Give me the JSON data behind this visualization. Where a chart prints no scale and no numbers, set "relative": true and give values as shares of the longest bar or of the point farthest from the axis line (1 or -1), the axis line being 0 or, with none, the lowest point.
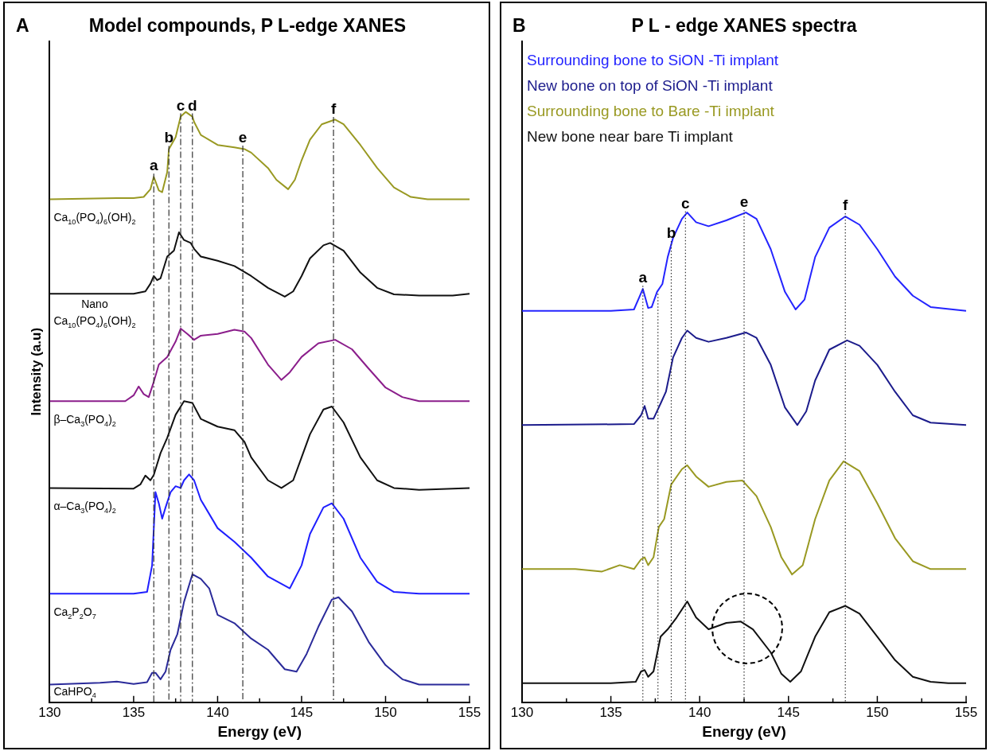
{
  "chart_data": [
    {
      "type": "line",
      "title": "Model compounds, P L-edge XANES",
      "xlabel": "Energy (eV)",
      "ylabel": "Intensity (a.u)",
      "relative": true,
      "marker": "none",
      "legend": false,
      "grid": false,
      "tick_labels": "x",
      "xlim": [
        130,
        155
      ],
      "xticks": [
        130,
        {
          "value": 132.5,
          "label": null
        },
        135,
        {
          "value": 137.5,
          "label": null
        },
        140,
        {
          "value": 142.5,
          "label": null
        },
        145,
        {
          "value": 147.5,
          "label": null
        },
        150,
        {
          "value": 152.5,
          "label": null
        },
        155
      ],
      "annotations": [
        "A"
      ],
      "ref_lines": [
        {
          "axis": "x",
          "value": 136.2,
          "label": "a",
          "line_style": "dashed"
        },
        {
          "axis": "x",
          "value": 137.1,
          "label": "b",
          "line_style": "dashed"
        },
        {
          "axis": "x",
          "value": 137.8,
          "label": "c",
          "line_style": "dashed"
        },
        {
          "axis": "x",
          "value": 138.5,
          "label": "d",
          "line_style": "dashed"
        },
        {
          "axis": "x",
          "value": 141.5,
          "label": "e",
          "line_style": "dashed"
        },
        {
          "axis": "x",
          "value": 146.9,
          "label": "f",
          "line_style": "dashed"
        }
      ],
      "series": [
        {
          "name": "Ca$_{10}$(PO$_{4}$)$_{6}$(OH)$_{2}$",
          "color": "#999922",
          "x": [
            130,
            134,
            135,
            135.6,
            136.0,
            136.2,
            136.5,
            136.7,
            137.0,
            137.1,
            137.5,
            137.8,
            138.1,
            138.5,
            138.6,
            139,
            140,
            141,
            141.6,
            142,
            143,
            143.5,
            144.2,
            144.6,
            145,
            145.5,
            146.2,
            147,
            147.5,
            148.5,
            149.5,
            150.5,
            151.5,
            152.5,
            155
          ],
          "values": [
            0.852,
            0.854,
            0.854,
            0.856,
            0.869,
            0.89,
            0.867,
            0.864,
            0.898,
            0.937,
            0.957,
            0.992,
            1.0,
            0.992,
            0.983,
            0.961,
            0.944,
            0.94,
            0.937,
            0.931,
            0.905,
            0.885,
            0.869,
            0.885,
            0.918,
            0.953,
            0.979,
            0.987,
            0.979,
            0.944,
            0.905,
            0.872,
            0.856,
            0.852,
            0.852
          ]
        },
        {
          "name": "Nano\nCa$_{10}$(PO$_{4}$)$_{6}$(OH)$_{2}$",
          "color": "#111111",
          "x": [
            130,
            135,
            135.7,
            136.0,
            136.2,
            136.4,
            136.6,
            137,
            137.4,
            137.7,
            138.0,
            138.4,
            138.6,
            139,
            140,
            141,
            142,
            143,
            144,
            144.5,
            145,
            145.5,
            146.3,
            146.7,
            147.5,
            148.5,
            149.5,
            150.5,
            152,
            154,
            155
          ],
          "values": [
            0.692,
            0.692,
            0.696,
            0.709,
            0.722,
            0.715,
            0.718,
            0.755,
            0.765,
            0.796,
            0.783,
            0.778,
            0.768,
            0.755,
            0.748,
            0.739,
            0.722,
            0.702,
            0.687,
            0.696,
            0.722,
            0.752,
            0.774,
            0.778,
            0.765,
            0.728,
            0.702,
            0.691,
            0.689,
            0.689,
            0.692
          ]
        },
        {
          "name": "β–Ca$_{3}$(PO$_{4}$)$_{2}$",
          "color": "#8b1e8b",
          "x": [
            130,
            134.5,
            135.0,
            135.3,
            135.6,
            135.9,
            136.2,
            136.5,
            137,
            137.5,
            137.8,
            138.2,
            138.6,
            139,
            140,
            141,
            141.6,
            142,
            143,
            143.8,
            144.3,
            145,
            146,
            147,
            148,
            149,
            150,
            151,
            152,
            155
          ],
          "values": [
            0.51,
            0.51,
            0.52,
            0.535,
            0.522,
            0.517,
            0.543,
            0.572,
            0.585,
            0.611,
            0.633,
            0.624,
            0.614,
            0.621,
            0.624,
            0.631,
            0.628,
            0.617,
            0.572,
            0.546,
            0.559,
            0.585,
            0.608,
            0.614,
            0.598,
            0.565,
            0.533,
            0.517,
            0.51,
            0.51
          ]
        },
        {
          "name": "α–Ca$_{3}$(PO$_{4}$)$_{2}$",
          "color": "#111111",
          "x": [
            130,
            135,
            135.4,
            135.7,
            136.0,
            136.2,
            136.6,
            137,
            137.5,
            138,
            138.5,
            139,
            140,
            141,
            141.6,
            142,
            143,
            143.8,
            144.5,
            145,
            145.5,
            146.3,
            146.8,
            147.5,
            148.5,
            149.5,
            150.5,
            152,
            155
          ],
          "values": [
            0.363,
            0.362,
            0.369,
            0.384,
            0.376,
            0.385,
            0.422,
            0.448,
            0.487,
            0.51,
            0.507,
            0.48,
            0.467,
            0.461,
            0.441,
            0.415,
            0.376,
            0.363,
            0.376,
            0.415,
            0.454,
            0.496,
            0.501,
            0.474,
            0.415,
            0.376,
            0.363,
            0.36,
            0.363
          ]
        },
        {
          "name": "Ca$_{2}$P$_{2}$O$_{7}$",
          "color": "#1f1fff",
          "x": [
            130,
            135,
            135.8,
            136.1,
            136.3,
            136.5,
            136.7,
            136.9,
            137.2,
            137.5,
            137.8,
            138,
            138.3,
            138.6,
            139,
            140,
            141,
            142,
            143,
            144.3,
            145,
            145.5,
            146.3,
            146.8,
            147.5,
            148.5,
            149.5,
            150.5,
            152,
            155
          ],
          "values": [
            0.184,
            0.184,
            0.187,
            0.232,
            0.356,
            0.337,
            0.311,
            0.33,
            0.356,
            0.366,
            0.363,
            0.376,
            0.386,
            0.376,
            0.343,
            0.295,
            0.272,
            0.245,
            0.213,
            0.193,
            0.232,
            0.285,
            0.33,
            0.337,
            0.311,
            0.245,
            0.204,
            0.187,
            0.184,
            0.184
          ]
        },
        {
          "name": "CaHPO$_{4}$",
          "color": "#2b2b9a",
          "x": [
            130,
            133,
            134,
            135,
            135.8,
            136.1,
            136.3,
            136.6,
            136.9,
            137.2,
            137.6,
            138,
            138.5,
            139,
            139.5,
            140,
            141,
            142,
            143,
            144,
            144.7,
            145.3,
            146,
            146.8,
            147.2,
            148,
            149,
            150,
            151,
            152,
            155
          ],
          "values": [
            0.03,
            0.033,
            0.035,
            0.031,
            0.034,
            0.05,
            0.05,
            0.039,
            0.052,
            0.089,
            0.115,
            0.17,
            0.217,
            0.209,
            0.193,
            0.148,
            0.134,
            0.108,
            0.089,
            0.056,
            0.052,
            0.082,
            0.128,
            0.174,
            0.178,
            0.154,
            0.102,
            0.063,
            0.039,
            0.03,
            0.03
          ]
        }
      ]
    },
    {
      "type": "line",
      "title": "P L - edge XANES spectra",
      "xlabel": "Energy (eV)",
      "relative": true,
      "marker": "none",
      "legend": "top left",
      "grid": false,
      "tick_labels": "x",
      "xlim": [
        130,
        155
      ],
      "xticks": [
        130,
        {
          "value": 132.5,
          "label": null
        },
        135,
        {
          "value": 137.5,
          "label": null
        },
        140,
        {
          "value": 142.5,
          "label": null
        },
        145,
        {
          "value": 147.5,
          "label": null
        },
        150,
        {
          "value": 152.5,
          "label": null
        },
        155
      ],
      "annotations": [
        "B"
      ],
      "ref_lines": [
        {
          "axis": "x",
          "value": 136.8,
          "label": "a",
          "line_style": "dotted"
        },
        {
          "axis": "x",
          "value": 137.65,
          "label": null,
          "line_style": "dotted"
        },
        {
          "axis": "x",
          "value": 138.4,
          "label": "b",
          "line_style": "dotted"
        },
        {
          "axis": "x",
          "value": 139.2,
          "label": "c",
          "line_style": "dotted"
        },
        {
          "axis": "x",
          "value": 142.5,
          "label": "e",
          "line_style": "dotted"
        },
        {
          "axis": "x",
          "value": 148.2,
          "label": "f",
          "line_style": "dotted"
        }
      ],
      "series": [
        {
          "name": "Surrounding bone to SiON -Ti implant",
          "color": "#2424ff",
          "x": [
            130,
            135,
            136.3,
            136.6,
            136.8,
            137.1,
            137.3,
            137.6,
            137.9,
            138.2,
            138.5,
            139.0,
            139.3,
            139.8,
            140.5,
            141.5,
            142.6,
            143.2,
            144,
            144.8,
            145.4,
            145.9,
            146.5,
            147.3,
            148.2,
            149,
            150,
            151,
            152,
            153,
            155
          ],
          "values": [
            0.799,
            0.799,
            0.802,
            0.827,
            0.844,
            0.805,
            0.807,
            0.838,
            0.854,
            0.909,
            0.948,
            0.987,
            1.0,
            0.98,
            0.972,
            0.984,
            1.0,
            0.987,
            0.925,
            0.838,
            0.802,
            0.822,
            0.909,
            0.969,
            0.992,
            0.975,
            0.925,
            0.869,
            0.83,
            0.807,
            0.799
          ]
        },
        {
          "name": "New bone on top of SiON -Ti implant",
          "color": "#1c1c8c",
          "x": [
            130,
            136.3,
            136.7,
            136.9,
            137.1,
            137.4,
            137.8,
            138.1,
            138.5,
            139,
            139.3,
            139.8,
            140.5,
            141.5,
            142.6,
            143.2,
            144,
            144.8,
            145.5,
            146,
            146.5,
            147.3,
            148.3,
            149,
            150,
            151,
            152,
            153,
            155
          ],
          "values": [
            0.566,
            0.568,
            0.586,
            0.605,
            0.579,
            0.579,
            0.61,
            0.634,
            0.704,
            0.744,
            0.759,
            0.744,
            0.736,
            0.744,
            0.755,
            0.744,
            0.689,
            0.602,
            0.566,
            0.594,
            0.657,
            0.72,
            0.739,
            0.728,
            0.689,
            0.634,
            0.586,
            0.571,
            0.566
          ]
        },
        {
          "name": "Surrounding bone to Bare -Ti implant",
          "color": "#999922",
          "x": [
            130,
            133,
            134.5,
            135.5,
            136.3,
            136.7,
            136.9,
            137.1,
            137.4,
            137.7,
            138,
            138.4,
            139,
            139.3,
            139.8,
            140.5,
            141.5,
            142.4,
            143.2,
            144,
            144.6,
            145.2,
            145.8,
            146.5,
            147.3,
            148.1,
            149,
            150,
            151,
            152,
            153,
            155
          ],
          "values": [
            0.272,
            0.272,
            0.267,
            0.28,
            0.272,
            0.292,
            0.296,
            0.28,
            0.296,
            0.358,
            0.374,
            0.445,
            0.476,
            0.484,
            0.461,
            0.44,
            0.45,
            0.453,
            0.421,
            0.358,
            0.296,
            0.261,
            0.28,
            0.374,
            0.453,
            0.492,
            0.472,
            0.406,
            0.335,
            0.288,
            0.272,
            0.272
          ]
        },
        {
          "name": "New bone near bare Ti implant",
          "color": "#111111",
          "x": [
            130,
            135,
            136.4,
            136.7,
            136.9,
            137.1,
            137.4,
            137.8,
            138.2,
            138.7,
            139.3,
            139.8,
            140.5,
            141.5,
            142.3,
            143,
            144,
            144.6,
            145.1,
            145.7,
            146.5,
            147.3,
            148.2,
            149,
            150,
            151,
            152,
            153,
            154,
            155
          ],
          "values": [
            0.039,
            0.039,
            0.042,
            0.063,
            0.066,
            0.052,
            0.063,
            0.134,
            0.149,
            0.173,
            0.206,
            0.173,
            0.149,
            0.162,
            0.165,
            0.149,
            0.102,
            0.058,
            0.042,
            0.063,
            0.134,
            0.184,
            0.197,
            0.181,
            0.134,
            0.086,
            0.052,
            0.042,
            0.039,
            0.039
          ]
        }
      ]
    }
  ]
}
